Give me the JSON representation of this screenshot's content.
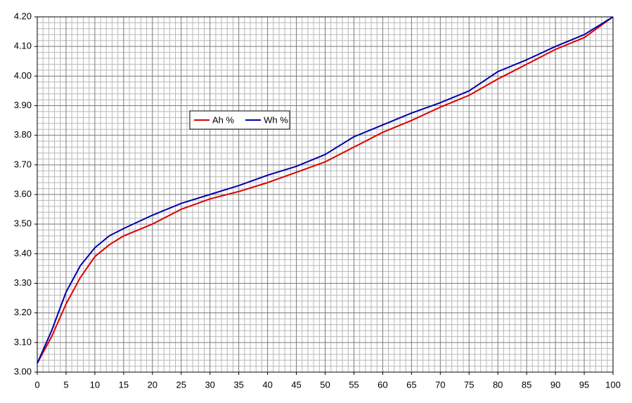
{
  "chart_data": {
    "type": "line",
    "x": [
      0,
      2.5,
      5,
      7.5,
      10,
      12.5,
      15,
      20,
      25,
      30,
      35,
      40,
      45,
      50,
      55,
      60,
      65,
      70,
      75,
      80,
      85,
      90,
      95,
      100
    ],
    "series": [
      {
        "name": "Ah %",
        "color": "#dd0000",
        "values": [
          3.03,
          3.12,
          3.23,
          3.32,
          3.39,
          3.43,
          3.46,
          3.5,
          3.55,
          3.585,
          3.61,
          3.64,
          3.675,
          3.71,
          3.76,
          3.81,
          3.85,
          3.895,
          3.935,
          3.99,
          4.04,
          4.09,
          4.13,
          4.2
        ]
      },
      {
        "name": "Wh %",
        "color": "#0000aa",
        "values": [
          3.03,
          3.14,
          3.27,
          3.36,
          3.42,
          3.46,
          3.485,
          3.53,
          3.57,
          3.6,
          3.63,
          3.665,
          3.695,
          3.735,
          3.795,
          3.835,
          3.875,
          3.91,
          3.95,
          4.015,
          4.055,
          4.1,
          4.14,
          4.2
        ]
      }
    ],
    "xlim": [
      0,
      100
    ],
    "xticks": [
      0,
      5,
      10,
      15,
      20,
      25,
      30,
      35,
      40,
      45,
      50,
      55,
      60,
      65,
      70,
      75,
      80,
      85,
      90,
      95,
      100
    ],
    "ylim": [
      3,
      4.2
    ],
    "yticks": [
      {
        "value": 3,
        "label": "3.00"
      },
      {
        "value": 3.1,
        "label": "3.10"
      },
      {
        "value": 3.2,
        "label": "3.20"
      },
      {
        "value": 3.3,
        "label": "3.30"
      },
      {
        "value": 3.4,
        "label": "3.40"
      },
      {
        "value": 3.5,
        "label": "3.50"
      },
      {
        "value": 3.6,
        "label": "3.60"
      },
      {
        "value": 3.7,
        "label": "3.70"
      },
      {
        "value": 3.8,
        "label": "3.80"
      },
      {
        "value": 3.9,
        "label": "3.90"
      },
      {
        "value": 4,
        "label": "4.00"
      },
      {
        "value": 4.1,
        "label": "4.10"
      },
      {
        "value": 4.2,
        "label": "4.20"
      }
    ],
    "grid": true,
    "minor_grid": true
  }
}
